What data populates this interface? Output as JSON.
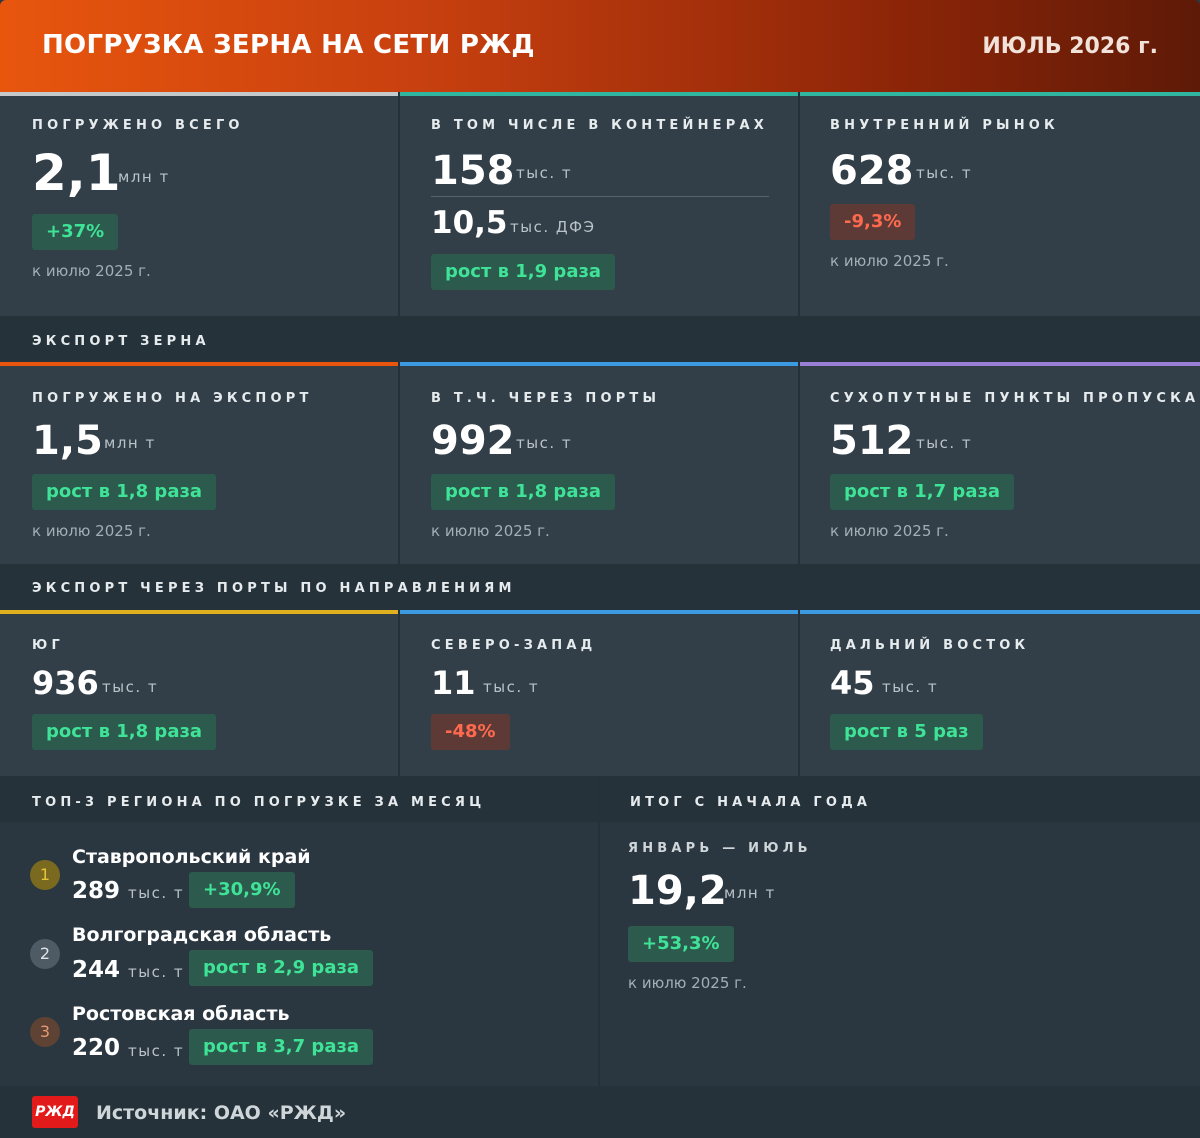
{
  "header": {
    "title": "ПОГРУЗКА ЗЕРНА НА СЕТИ РЖД",
    "period": "ИЮЛЬ 2026 г."
  },
  "colors": {
    "green": "#3fe398",
    "red": "#ff6a4f",
    "accent_orange": "#e8560e",
    "blue": "#3c9be0",
    "purple": "#9b7fd6",
    "yellow": "#e0b01e",
    "teal": "#2fb5a0"
  },
  "top": {
    "total": {
      "label": "ПОГРУЖЕНО ВСЕГО",
      "value": "2,1",
      "unit": "млн т",
      "change": "+37%",
      "note": "к июлю 2025 г."
    },
    "containers": {
      "label": "В ТОМ ЧИСЛЕ В КОНТЕЙНЕРАХ",
      "value": "158",
      "unit": "тыс. т",
      "value2": "10,5",
      "unit2": "тыс. ДФЭ",
      "change": "рост в 1,9 раза"
    },
    "domestic": {
      "label": "ВНУТРЕННИЙ РЫНОК",
      "value": "628",
      "unit": "тыс. т",
      "change": "-9,3%",
      "note": "к июлю 2025 г."
    }
  },
  "export": {
    "section_label": "ЭКСПОРТ ЗЕРНА",
    "cards": [
      {
        "label": "ПОГРУЖЕНО НА ЭКСПОРТ",
        "value": "1,5",
        "unit": "млн т",
        "change": "рост в 1,8 раза",
        "note": "к июлю 2025 г."
      },
      {
        "label": "В Т.Ч. ЧЕРЕЗ ПОРТЫ",
        "value": "992",
        "unit": "тыс. т",
        "change": "рост в 1,8 раза",
        "note": "к июлю 2025 г."
      },
      {
        "label": "СУХОПУТНЫЕ ПУНКТЫ ПРОПУСКА",
        "value": "512",
        "unit": "тыс. т",
        "change": "рост в 1,7 раза",
        "note": "к июлю 2025 г."
      }
    ]
  },
  "ports": {
    "section_label": "ЭКСПОРТ ЧЕРЕЗ ПОРТЫ ПО НАПРАВЛЕНИЯМ",
    "cards": [
      {
        "label": "ЮГ",
        "value": "936",
        "unit": "тыс. т",
        "change": "рост в 1,8 раза"
      },
      {
        "label": "СЕВЕРО-ЗАПАД",
        "value": "11",
        "unit": "тыс. т",
        "change": "-48%"
      },
      {
        "label": "ДАЛЬНИЙ ВОСТОК",
        "value": "45",
        "unit": "тыс. т",
        "change": "рост в 5 раз"
      }
    ]
  },
  "regions": {
    "section_label": "ТОП-3 РЕГИОНА ПО ПОГРУЗКЕ ЗА МЕСЯЦ",
    "items": [
      {
        "rank": "1",
        "name": "Ставропольский край",
        "value": "289",
        "unit": "тыс. т",
        "change": "+30,9%"
      },
      {
        "rank": "2",
        "name": "Волгоградская область",
        "value": "244",
        "unit": "тыс. т",
        "change": "рост в 2,9 раза"
      },
      {
        "rank": "3",
        "name": "Ростовская область",
        "value": "220",
        "unit": "тыс. т",
        "change": "рост в 3,7 раза"
      }
    ]
  },
  "ytd": {
    "section_label": "ИТОГ С НАЧАЛА ГОДА",
    "period": "ЯНВАРЬ — ИЮЛЬ",
    "value": "19,2",
    "unit": "млн т",
    "change": "+53,3%",
    "note": "к июлю 2025 г."
  },
  "footer": {
    "logo_text": "РЖД",
    "source": "Источник: ОАО «РЖД»"
  }
}
